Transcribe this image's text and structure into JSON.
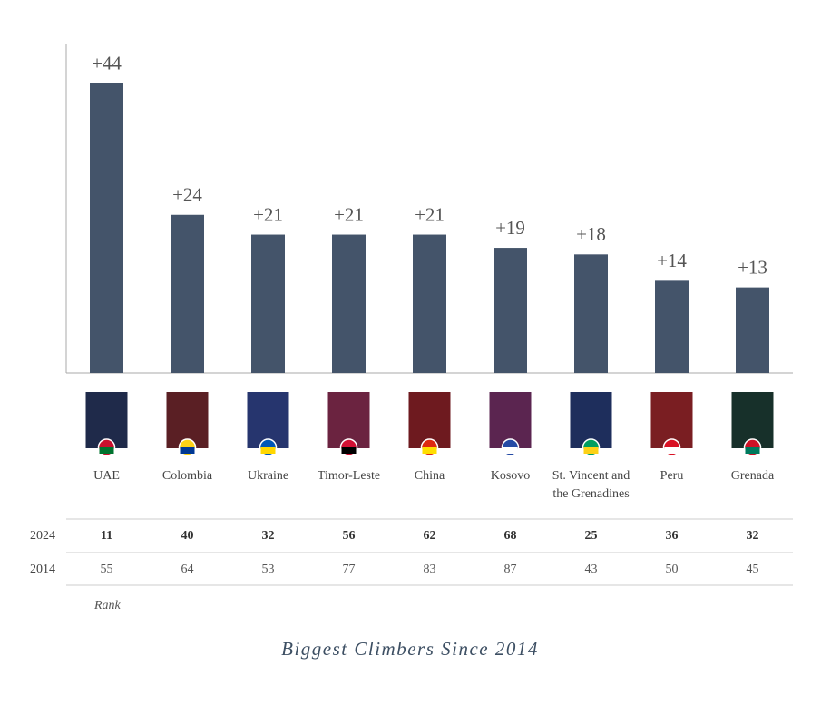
{
  "chart_data": {
    "type": "bar",
    "title": "Biggest Climbers Since 2014",
    "categories": [
      "UAE",
      "Colombia",
      "Ukraine",
      "Timor-Leste",
      "China",
      "Kosovo",
      "St. Vincent and the Grenadines",
      "Peru",
      "Grenada"
    ],
    "values": [
      44,
      24,
      21,
      21,
      21,
      19,
      18,
      14,
      13
    ],
    "value_labels": [
      "+44",
      "+24",
      "+21",
      "+21",
      "+21",
      "+19",
      "+18",
      "+14",
      "+13"
    ],
    "color": "#44546a",
    "ylim": [
      0,
      50
    ],
    "table": {
      "label": "Rank",
      "row_labels": [
        "2024",
        "2014"
      ],
      "rows": [
        [
          11,
          40,
          32,
          56,
          62,
          68,
          25,
          36,
          32
        ],
        [
          55,
          64,
          53,
          77,
          83,
          87,
          43,
          50,
          45
        ]
      ]
    }
  }
}
